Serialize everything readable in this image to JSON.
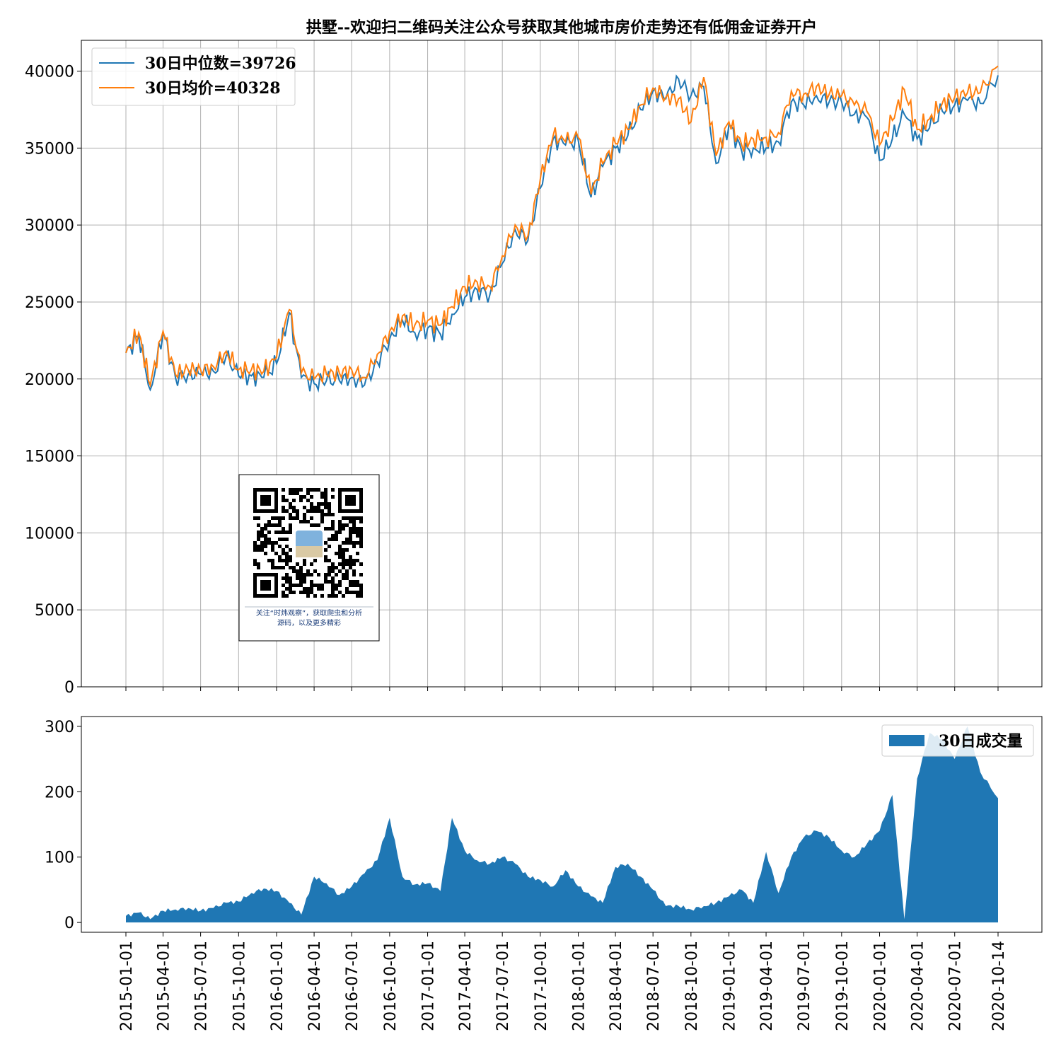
{
  "chart_data": [
    {
      "type": "line",
      "title": "拱墅--欢迎扫二维码关注公众号获取其他城市房价走势还有低佣金证券开户",
      "ylim": [
        0,
        42000
      ],
      "yticks": [
        0,
        5000,
        10000,
        15000,
        20000,
        25000,
        30000,
        35000,
        40000
      ],
      "grid": true,
      "legend_position": "upper-left",
      "colors": {
        "median": "#1f77b4",
        "mean": "#ff7f0e"
      },
      "x": [
        "2015-01-01",
        "2015-02-01",
        "2015-03-01",
        "2015-04-01",
        "2015-05-01",
        "2015-06-01",
        "2015-07-01",
        "2015-08-01",
        "2015-09-01",
        "2015-10-01",
        "2015-11-01",
        "2015-12-01",
        "2016-01-01",
        "2016-02-01",
        "2016-03-01",
        "2016-04-01",
        "2016-05-01",
        "2016-06-01",
        "2016-07-01",
        "2016-08-01",
        "2016-09-01",
        "2016-10-01",
        "2016-11-01",
        "2016-12-01",
        "2017-01-01",
        "2017-02-01",
        "2017-03-01",
        "2017-04-01",
        "2017-05-01",
        "2017-06-01",
        "2017-07-01",
        "2017-08-01",
        "2017-09-01",
        "2017-10-01",
        "2017-11-01",
        "2017-12-01",
        "2018-01-01",
        "2018-02-01",
        "2018-03-01",
        "2018-04-01",
        "2018-05-01",
        "2018-06-01",
        "2018-07-01",
        "2018-08-01",
        "2018-09-01",
        "2018-10-01",
        "2018-11-01",
        "2018-12-01",
        "2019-01-01",
        "2019-02-01",
        "2019-03-01",
        "2019-04-01",
        "2019-05-01",
        "2019-06-01",
        "2019-07-01",
        "2019-08-01",
        "2019-09-01",
        "2019-10-01",
        "2019-11-01",
        "2019-12-01",
        "2020-01-01",
        "2020-02-01",
        "2020-03-01",
        "2020-04-01",
        "2020-05-01",
        "2020-06-01",
        "2020-07-01",
        "2020-08-01",
        "2020-09-01",
        "2020-10-14"
      ],
      "series": [
        {
          "name": "30日中位数=39726",
          "values": [
            21700,
            22800,
            19300,
            23000,
            20100,
            20300,
            20300,
            20500,
            21500,
            20200,
            20200,
            20100,
            21000,
            24300,
            20100,
            19700,
            19900,
            19900,
            20100,
            19600,
            21100,
            22600,
            23800,
            23000,
            23300,
            22900,
            24200,
            25300,
            25800,
            25500,
            27500,
            29700,
            29000,
            32400,
            35600,
            35200,
            35500,
            31800,
            33800,
            35000,
            35800,
            37500,
            38700,
            38200,
            39500,
            38400,
            39000,
            34000,
            36500,
            34800,
            35000,
            35000,
            35400,
            38000,
            37800,
            38400,
            38000,
            38000,
            37200,
            37000,
            34200,
            35600,
            37200,
            35600,
            36300,
            37400,
            37800,
            38100,
            37900,
            39726
          ]
        },
        {
          "name": "30日均价=40328",
          "values": [
            21700,
            23000,
            19600,
            23100,
            20300,
            20600,
            20600,
            20800,
            21800,
            20600,
            20600,
            20500,
            21400,
            24500,
            20400,
            20000,
            20300,
            20400,
            20600,
            20100,
            21600,
            23100,
            24100,
            23500,
            23800,
            23500,
            24700,
            26000,
            26300,
            26000,
            28000,
            30000,
            29300,
            33000,
            35800,
            35400,
            35700,
            32000,
            34000,
            35300,
            36200,
            37800,
            38900,
            38300,
            38200,
            36700,
            39600,
            34500,
            36700,
            35200,
            35600,
            35700,
            36000,
            38700,
            38500,
            39000,
            38500,
            38400,
            37800,
            37400,
            35200,
            36800,
            38800,
            36200,
            36900,
            37900,
            38300,
            38600,
            38600,
            40328
          ]
        }
      ]
    },
    {
      "type": "area",
      "ylim": [
        -15,
        315
      ],
      "yticks": [
        0,
        100,
        200,
        300
      ],
      "grid": false,
      "legend_position": "upper-right",
      "colors": {
        "volume": "#1f77b4"
      },
      "x": [
        "2015-01-01",
        "2015-02-01",
        "2015-03-01",
        "2015-04-01",
        "2015-05-01",
        "2015-06-01",
        "2015-07-01",
        "2015-08-01",
        "2015-09-01",
        "2015-10-01",
        "2015-11-01",
        "2015-12-01",
        "2016-01-01",
        "2016-02-01",
        "2016-03-01",
        "2016-04-01",
        "2016-05-01",
        "2016-06-01",
        "2016-07-01",
        "2016-08-01",
        "2016-09-01",
        "2016-10-01",
        "2016-11-01",
        "2016-12-01",
        "2017-01-01",
        "2017-02-01",
        "2017-03-01",
        "2017-04-01",
        "2017-05-01",
        "2017-06-01",
        "2017-07-01",
        "2017-08-01",
        "2017-09-01",
        "2017-10-01",
        "2017-11-01",
        "2017-12-01",
        "2018-01-01",
        "2018-02-01",
        "2018-03-01",
        "2018-04-01",
        "2018-05-01",
        "2018-06-01",
        "2018-07-01",
        "2018-08-01",
        "2018-09-01",
        "2018-10-01",
        "2018-11-01",
        "2018-12-01",
        "2019-01-01",
        "2019-02-01",
        "2019-03-01",
        "2019-04-01",
        "2019-05-01",
        "2019-06-01",
        "2019-07-01",
        "2019-08-01",
        "2019-09-01",
        "2019-10-01",
        "2019-11-01",
        "2019-12-01",
        "2020-01-01",
        "2020-02-01",
        "2020-03-01",
        "2020-04-01",
        "2020-05-01",
        "2020-06-01",
        "2020-07-01",
        "2020-08-01",
        "2020-09-01",
        "2020-10-14"
      ],
      "series": [
        {
          "name": "30日成交量",
          "values": [
            10,
            15,
            5,
            18,
            20,
            22,
            18,
            22,
            30,
            32,
            45,
            52,
            48,
            30,
            12,
            70,
            60,
            42,
            55,
            75,
            95,
            160,
            70,
            58,
            60,
            48,
            160,
            110,
            95,
            90,
            100,
            90,
            70,
            65,
            55,
            80,
            55,
            40,
            30,
            85,
            90,
            70,
            50,
            25,
            25,
            20,
            25,
            30,
            40,
            50,
            30,
            108,
            45,
            100,
            130,
            140,
            130,
            110,
            100,
            120,
            140,
            195,
            5,
            220,
            290,
            280,
            250,
            300,
            230,
            190
          ]
        }
      ]
    }
  ],
  "xtick_labels": [
    "2015-01-01",
    "2015-04-01",
    "2015-07-01",
    "2015-10-01",
    "2016-01-01",
    "2016-04-01",
    "2016-07-01",
    "2016-10-01",
    "2017-01-01",
    "2017-04-01",
    "2017-07-01",
    "2017-10-01",
    "2018-01-01",
    "2018-04-01",
    "2018-07-01",
    "2018-10-01",
    "2019-01-01",
    "2019-04-01",
    "2019-07-01",
    "2019-10-01",
    "2020-01-01",
    "2020-04-01",
    "2020-07-01",
    "2020-10-14"
  ],
  "qr": {
    "caption_line1": "关注“时炜观察”，获取爬虫和分析",
    "caption_line2": "源码，以及更多精彩"
  }
}
